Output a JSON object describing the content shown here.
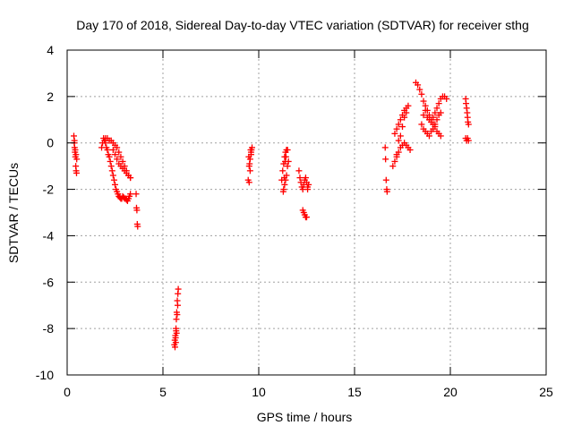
{
  "chart_data": {
    "type": "scatter",
    "title": "Day 170 of 2018, Sidereal Day-to-day VTEC variation (SDTVAR) for receiver sthg",
    "xlabel": "GPS time / hours",
    "ylabel": "SDTVAR / TECUs",
    "xlim": [
      0,
      25
    ],
    "ylim": [
      -10,
      4
    ],
    "xticks": [
      "0",
      "5",
      "10",
      "15",
      "20",
      "25"
    ],
    "yticks": [
      "-10",
      "-8",
      "-6",
      "-4",
      "-2",
      "0",
      "2",
      "4"
    ],
    "grid": true,
    "marker": "+",
    "marker_color": "#ff0000",
    "series": [
      {
        "name": "SDTVAR",
        "x": [
          0.35,
          0.37,
          0.39,
          0.41,
          0.43,
          0.45,
          0.47,
          0.49,
          0.38,
          0.42,
          0.46,
          0.5,
          1.8,
          1.85,
          1.9,
          1.95,
          2.0,
          2.05,
          2.1,
          2.15,
          2.2,
          2.25,
          2.3,
          2.35,
          2.4,
          2.45,
          2.5,
          2.55,
          2.6,
          2.65,
          2.7,
          2.75,
          2.8,
          2.85,
          2.9,
          2.95,
          3.0,
          3.05,
          3.1,
          3.15,
          3.2,
          3.25,
          3.3,
          2.0,
          2.1,
          2.2,
          2.3,
          2.4,
          2.5,
          2.6,
          2.7,
          2.8,
          2.9,
          3.0,
          3.1,
          3.2,
          3.3,
          2.4,
          2.5,
          2.6,
          2.7,
          2.8,
          2.9,
          3.0,
          3.1,
          3.2,
          3.3,
          3.6,
          3.62,
          3.64,
          3.66,
          3.68,
          5.6,
          5.62,
          5.65,
          5.68,
          5.7,
          5.72,
          5.75,
          5.78,
          5.8,
          5.63,
          5.67,
          5.71,
          5.74,
          5.77,
          5.66,
          5.69,
          9.45,
          9.5,
          9.55,
          9.6,
          9.65,
          9.5,
          9.55,
          9.6,
          9.48,
          9.52,
          9.58,
          9.62,
          11.2,
          11.25,
          11.3,
          11.35,
          11.4,
          11.45,
          11.5,
          11.3,
          11.35,
          11.4,
          11.45,
          11.5,
          11.55,
          11.28,
          11.33,
          11.38,
          11.42,
          12.1,
          12.15,
          12.2,
          12.25,
          12.3,
          12.35,
          12.4,
          12.45,
          12.5,
          12.55,
          12.3,
          12.35,
          12.4,
          12.45,
          12.5,
          12.6,
          12.55,
          16.6,
          16.62,
          16.65,
          16.68,
          16.7,
          17.0,
          17.1,
          17.2,
          17.3,
          17.4,
          17.5,
          17.6,
          17.7,
          17.8,
          17.9,
          17.1,
          17.2,
          17.3,
          17.4,
          17.5,
          17.6,
          17.7,
          17.2,
          17.3,
          17.4,
          17.5,
          17.6,
          17.7,
          17.8,
          18.2,
          18.3,
          18.4,
          18.5,
          18.6,
          18.7,
          18.8,
          18.9,
          19.0,
          19.1,
          19.2,
          19.3,
          19.4,
          19.5,
          19.6,
          19.7,
          19.8,
          18.5,
          18.6,
          18.7,
          18.8,
          18.9,
          19.0,
          19.1,
          19.2,
          19.3,
          19.4,
          19.5,
          18.6,
          18.7,
          18.8,
          18.9,
          19.0,
          19.1,
          19.2,
          19.3,
          19.4,
          19.5,
          20.8,
          20.85,
          20.9,
          20.95,
          20.8,
          20.85,
          20.9,
          20.95,
          20.82,
          20.88,
          20.92
        ],
        "y": [
          0.3,
          0.0,
          -0.2,
          -0.4,
          -0.6,
          -1.0,
          -1.2,
          -1.3,
          0.1,
          -0.3,
          -0.5,
          -0.7,
          -0.2,
          0.0,
          0.2,
          0.1,
          0.0,
          -0.2,
          -0.3,
          -0.5,
          -0.6,
          -0.8,
          -1.0,
          -1.2,
          -1.4,
          -1.6,
          -1.8,
          -2.0,
          -2.1,
          -2.2,
          -2.3,
          -2.35,
          -2.4,
          -2.4,
          -2.3,
          -2.35,
          -2.4,
          -2.4,
          -2.45,
          -2.5,
          -2.4,
          -2.3,
          -2.2,
          0.2,
          0.2,
          0.1,
          0.1,
          0.0,
          -0.1,
          -0.2,
          -0.4,
          -0.6,
          -0.8,
          -1.0,
          -1.2,
          -1.4,
          -1.5,
          -0.3,
          -0.5,
          -0.7,
          -0.9,
          -1.0,
          -1.1,
          -1.2,
          -1.3,
          -1.4,
          -1.5,
          -2.2,
          -2.8,
          -2.9,
          -3.5,
          -3.6,
          -8.7,
          -8.5,
          -8.3,
          -8.0,
          -7.6,
          -7.3,
          -6.8,
          -6.5,
          -6.3,
          -8.8,
          -8.6,
          -8.2,
          -7.4,
          -7.0,
          -8.4,
          -8.1,
          -1.6,
          -1.0,
          -0.7,
          -0.4,
          -0.2,
          -1.7,
          -1.2,
          -0.5,
          -0.6,
          -0.9,
          -0.3,
          -0.3,
          -1.6,
          -1.2,
          -0.9,
          -0.6,
          -0.4,
          -0.3,
          -0.3,
          -2.0,
          -1.8,
          -1.6,
          -1.4,
          -1.0,
          -0.8,
          -2.1,
          -1.5,
          -0.8,
          -0.6,
          -1.2,
          -1.5,
          -1.7,
          -1.9,
          -2.0,
          -1.8,
          -1.6,
          -1.5,
          -1.7,
          -1.9,
          -2.9,
          -3.0,
          -3.1,
          -3.2,
          -3.2,
          -1.8,
          -2.0,
          -0.2,
          -0.7,
          -1.6,
          -2.0,
          -2.1,
          -1.0,
          -0.8,
          -0.6,
          -0.4,
          -0.2,
          -0.1,
          0.0,
          -0.1,
          -0.2,
          -0.3,
          0.4,
          0.6,
          0.8,
          1.0,
          1.2,
          1.4,
          1.5,
          -0.5,
          0.1,
          0.3,
          0.7,
          1.1,
          1.3,
          1.6,
          2.6,
          2.5,
          2.3,
          2.1,
          1.8,
          1.6,
          1.4,
          1.2,
          1.0,
          1.1,
          1.3,
          1.5,
          1.7,
          1.9,
          2.0,
          2.0,
          1.9,
          0.8,
          0.6,
          0.5,
          0.4,
          0.3,
          0.5,
          0.6,
          0.8,
          1.0,
          1.2,
          1.3,
          1.2,
          1.4,
          1.1,
          1.0,
          0.9,
          0.8,
          0.7,
          0.5,
          0.4,
          0.3,
          1.9,
          1.5,
          1.1,
          0.8,
          0.2,
          0.1,
          0.2,
          0.1,
          1.7,
          1.3,
          0.9
        ]
      }
    ]
  }
}
